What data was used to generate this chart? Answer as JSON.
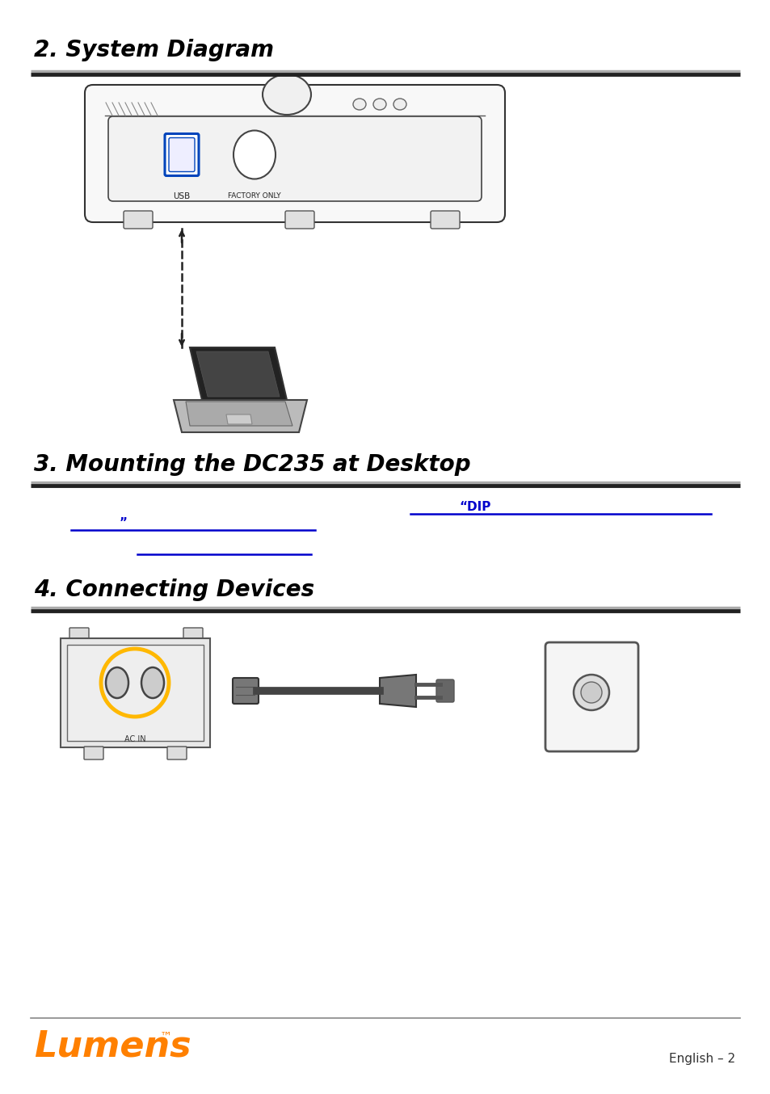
{
  "title1": "2. System Diagram",
  "title2": "3. Mounting the DC235 at Desktop",
  "title3": "4. Connecting Devices",
  "blue_color": "#0000CC",
  "black_color": "#000000",
  "bg_color": "#FFFFFF",
  "dip_text": "“DIP",
  "footer_text": "English – 2",
  "lumens_color": "#FF8000",
  "title_fontsize": 20,
  "body_fontsize": 10,
  "rule_color_dark": "#333333",
  "rule_color_light": "#888888"
}
